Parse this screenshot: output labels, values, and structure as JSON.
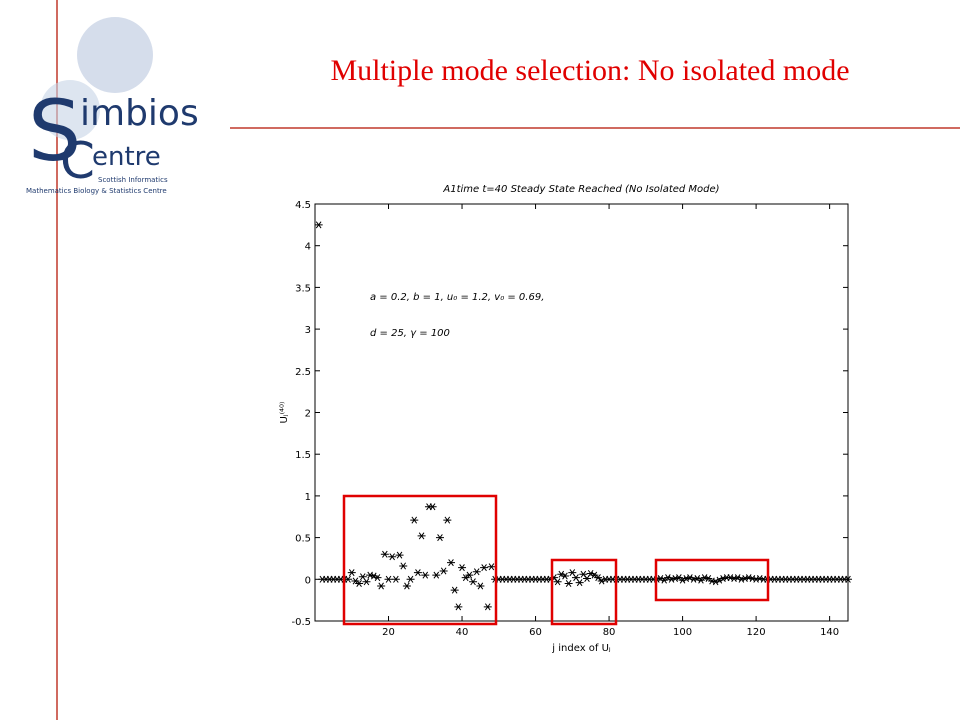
{
  "slide": {
    "title": "Multiple mode selection: No isolated mode"
  },
  "logo": {
    "big_s": "S",
    "word1": "imbios",
    "big_c": "C",
    "word2": "entre",
    "line1": "Scottish Informatics",
    "line2": "Mathematics Biology & Statistics Centre"
  },
  "chart_data": {
    "type": "scatter",
    "title": "A1time t=40 Steady State Reached   (No Isolated Mode)",
    "x_label": "j index of Uⱼ",
    "y_label": "Uⱼ⁽⁴⁰⁾",
    "annotations": [
      "a = 0.2,   b = 1,   u₀ = 1.2,   v₀ = 0.69,",
      "d = 25,   γ = 100"
    ],
    "x": [
      1,
      2,
      3,
      4,
      5,
      6,
      7,
      8,
      9,
      10,
      11,
      12,
      13,
      14,
      15,
      16,
      17,
      18,
      19,
      20,
      21,
      22,
      23,
      24,
      25,
      26,
      27,
      28,
      29,
      30,
      31,
      32,
      33,
      34,
      35,
      36,
      37,
      38,
      39,
      40,
      41,
      42,
      43,
      44,
      45,
      46,
      47,
      48,
      49,
      50,
      51,
      52,
      53,
      54,
      55,
      56,
      57,
      58,
      59,
      60,
      61,
      62,
      63,
      64,
      65,
      66,
      67,
      68,
      69,
      70,
      71,
      72,
      73,
      74,
      75,
      76,
      77,
      78,
      79,
      80,
      81,
      82,
      83,
      84,
      85,
      86,
      87,
      88,
      89,
      90,
      91,
      92,
      93,
      94,
      95,
      96,
      97,
      98,
      99,
      100,
      101,
      102,
      103,
      104,
      105,
      106,
      107,
      108,
      109,
      110,
      111,
      112,
      113,
      114,
      115,
      116,
      117,
      118,
      119,
      120,
      121,
      122,
      123,
      124,
      125,
      126,
      127,
      128,
      129,
      130,
      131,
      132,
      133,
      134,
      135,
      136,
      137,
      138,
      139,
      140,
      141,
      142,
      143,
      144,
      145
    ],
    "values": [
      4.25,
      0,
      0,
      0,
      0,
      0,
      0,
      0,
      0,
      0.08,
      -0.02,
      -0.05,
      0.03,
      -0.03,
      0.05,
      0.04,
      0.02,
      -0.08,
      0.3,
      0,
      0.27,
      0,
      0.29,
      0.16,
      -0.08,
      0,
      0.71,
      0.08,
      0.52,
      0.05,
      0.87,
      0.87,
      0.05,
      0.5,
      0.1,
      0.71,
      0.2,
      -0.13,
      -0.33,
      0.14,
      0.02,
      0.05,
      -0.03,
      0.09,
      -0.08,
      0.14,
      -0.33,
      0.15,
      0,
      0,
      0,
      0,
      0,
      0,
      0,
      0,
      0,
      0,
      0,
      0,
      0,
      0,
      0,
      0,
      0.02,
      -0.03,
      0.06,
      0.04,
      -0.05,
      0.08,
      0.02,
      -0.04,
      0.06,
      0.01,
      0.07,
      0.05,
      0.02,
      -0.02,
      0,
      0,
      0,
      0,
      0,
      0,
      0,
      0,
      0,
      0,
      0,
      0,
      0,
      0,
      0,
      0.01,
      -0.01,
      0.02,
      0,
      0.01,
      0.02,
      -0.01,
      0.01,
      0.02,
      0,
      0.01,
      -0.01,
      0.02,
      0.01,
      -0.02,
      -0.03,
      -0.01,
      0.01,
      0.02,
      0.02,
      0.01,
      0.02,
      0,
      0.01,
      0.02,
      0.01,
      0,
      0.01,
      0,
      0,
      0,
      0,
      0,
      0,
      0,
      0,
      0,
      0,
      0,
      0,
      0,
      0,
      0,
      0,
      0,
      0,
      0,
      0,
      0,
      0,
      0,
      0
    ],
    "color": "#000000",
    "xlim": [
      0,
      145
    ],
    "ylim": [
      -0.5,
      4.5
    ],
    "xticks": [
      20,
      40,
      60,
      80,
      100,
      120,
      140
    ],
    "yticks": [
      -0.5,
      0,
      0.5,
      1,
      1.5,
      2,
      2.5,
      3,
      3.5,
      4,
      4.5
    ]
  }
}
